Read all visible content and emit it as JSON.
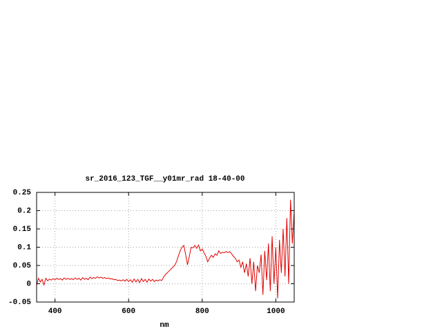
{
  "chart_data": {
    "type": "line",
    "title": "sr_2016_123_TGF__y01mr_rad 18-40-00",
    "x_label": "nm",
    "xlim": [
      350,
      1050
    ],
    "xticks": [
      400,
      600,
      800,
      1000
    ],
    "ylim": [
      -0.05,
      0.25
    ],
    "yticks": [
      0.25,
      0.2,
      0.15,
      0.1,
      0.05,
      0,
      -0.05
    ],
    "grid": true,
    "series": [
      {
        "color": "#e00000",
        "x": [
          350,
          355,
          360,
          365,
          370,
          375,
          380,
          385,
          390,
          395,
          400,
          405,
          410,
          415,
          420,
          425,
          430,
          435,
          440,
          445,
          450,
          455,
          460,
          465,
          470,
          475,
          480,
          485,
          490,
          495,
          500,
          505,
          510,
          515,
          520,
          525,
          530,
          535,
          540,
          545,
          550,
          555,
          560,
          565,
          570,
          575,
          580,
          585,
          590,
          595,
          600,
          605,
          610,
          615,
          620,
          625,
          630,
          635,
          640,
          645,
          650,
          655,
          660,
          665,
          670,
          675,
          680,
          685,
          690,
          695,
          700,
          705,
          710,
          715,
          720,
          725,
          730,
          735,
          740,
          745,
          750,
          755,
          760,
          765,
          770,
          775,
          780,
          785,
          790,
          795,
          800,
          805,
          810,
          815,
          820,
          825,
          830,
          835,
          840,
          845,
          850,
          855,
          860,
          865,
          870,
          875,
          880,
          885,
          890,
          895,
          900,
          905,
          910,
          915,
          920,
          925,
          930,
          935,
          940,
          945,
          950,
          955,
          960,
          965,
          970,
          975,
          980,
          985,
          990,
          995,
          1000,
          1005,
          1010,
          1015,
          1020,
          1025,
          1030,
          1035,
          1040,
          1045,
          1050
        ],
        "values": [
          -0.005,
          0.015,
          0.005,
          0.012,
          -0.003,
          0.015,
          0.008,
          0.013,
          0.01,
          0.014,
          0.011,
          0.015,
          0.012,
          0.014,
          0.01,
          0.016,
          0.012,
          0.015,
          0.012,
          0.014,
          0.011,
          0.016,
          0.012,
          0.015,
          0.01,
          0.017,
          0.012,
          0.015,
          0.011,
          0.018,
          0.014,
          0.017,
          0.015,
          0.019,
          0.016,
          0.018,
          0.015,
          0.017,
          0.014,
          0.016,
          0.013,
          0.014,
          0.011,
          0.012,
          0.009,
          0.01,
          0.008,
          0.011,
          0.007,
          0.012,
          0.006,
          0.011,
          0.004,
          0.013,
          0.005,
          0.012,
          0.003,
          0.014,
          0.006,
          0.012,
          0.004,
          0.013,
          0.007,
          0.012,
          0.006,
          0.01,
          0.008,
          0.011,
          0.009,
          0.018,
          0.025,
          0.03,
          0.035,
          0.04,
          0.045,
          0.05,
          0.06,
          0.075,
          0.09,
          0.1,
          0.105,
          0.08,
          0.052,
          0.075,
          0.1,
          0.098,
          0.105,
          0.097,
          0.106,
          0.09,
          0.095,
          0.085,
          0.075,
          0.06,
          0.07,
          0.078,
          0.072,
          0.082,
          0.078,
          0.09,
          0.083,
          0.086,
          0.085,
          0.088,
          0.085,
          0.088,
          0.082,
          0.075,
          0.07,
          0.06,
          0.065,
          0.045,
          0.06,
          0.03,
          0.055,
          0.02,
          0.07,
          0.0,
          0.06,
          -0.02,
          0.05,
          0.03,
          0.08,
          -0.03,
          0.09,
          0.01,
          0.11,
          -0.02,
          0.13,
          0.0,
          0.1,
          -0.04,
          0.12,
          0.03,
          0.15,
          0.02,
          0.18,
          0.0,
          0.23,
          0.11,
          0.2
        ]
      }
    ]
  }
}
